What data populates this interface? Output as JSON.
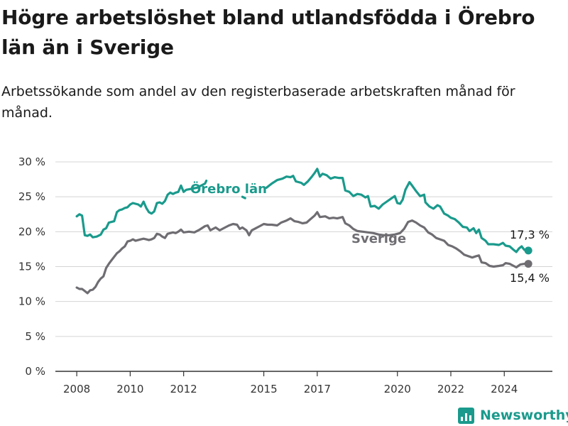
{
  "title": "Högre arbetslöshet bland utlandsfödda i Örebro län än i Sverige",
  "subtitle": "Arbetssökande som andel av den registerbaserade arbetskraften månad för månad.",
  "brand": {
    "name": "Newsworthy",
    "icon": "bar-chart-logo-icon"
  },
  "chart_data": {
    "type": "line",
    "xlim": [
      2007.2,
      2025.8
    ],
    "ylim": [
      0,
      30
    ],
    "grid": true,
    "x_ticks": [
      {
        "value": 2008,
        "label": "2008"
      },
      {
        "value": 2010,
        "label": "2010"
      },
      {
        "value": 2012,
        "label": "2012"
      },
      {
        "value": 2015,
        "label": "2015"
      },
      {
        "value": 2017,
        "label": "2017"
      },
      {
        "value": 2020,
        "label": "2020"
      },
      {
        "value": 2022,
        "label": "2022"
      },
      {
        "value": 2024,
        "label": "2024"
      }
    ],
    "y_ticks": [
      {
        "value": 0,
        "label": "0 %"
      },
      {
        "value": 5,
        "label": "5 %"
      },
      {
        "value": 10,
        "label": "10 %"
      },
      {
        "value": 15,
        "label": "15 %"
      },
      {
        "value": 20,
        "label": "20 %"
      },
      {
        "value": 25,
        "label": "25 %"
      },
      {
        "value": 30,
        "label": "30 %"
      }
    ],
    "series": [
      {
        "name": "Örebro län",
        "color": "#1a9a8c",
        "end_label": "17,3 %",
        "points": [
          [
            2008.0,
            22.2
          ],
          [
            2008.1,
            22.5
          ],
          [
            2008.2,
            22.3
          ],
          [
            2008.3,
            19.5
          ],
          [
            2008.4,
            19.4
          ],
          [
            2008.5,
            19.6
          ],
          [
            2008.6,
            19.2
          ],
          [
            2008.75,
            19.3
          ],
          [
            2008.9,
            19.6
          ],
          [
            2009.0,
            20.3
          ],
          [
            2009.1,
            20.5
          ],
          [
            2009.2,
            21.3
          ],
          [
            2009.3,
            21.4
          ],
          [
            2009.4,
            21.5
          ],
          [
            2009.5,
            22.8
          ],
          [
            2009.6,
            23.1
          ],
          [
            2009.7,
            23.2
          ],
          [
            2009.8,
            23.4
          ],
          [
            2009.9,
            23.5
          ],
          [
            2010.0,
            23.9
          ],
          [
            2010.1,
            24.1
          ],
          [
            2010.2,
            24.0
          ],
          [
            2010.3,
            23.9
          ],
          [
            2010.4,
            23.6
          ],
          [
            2010.5,
            24.3
          ],
          [
            2010.6,
            23.4
          ],
          [
            2010.7,
            22.8
          ],
          [
            2010.8,
            22.6
          ],
          [
            2010.9,
            22.9
          ],
          [
            2011.0,
            24.1
          ],
          [
            2011.1,
            24.2
          ],
          [
            2011.2,
            24.0
          ],
          [
            2011.3,
            24.4
          ],
          [
            2011.4,
            25.3
          ],
          [
            2011.5,
            25.6
          ],
          [
            2011.6,
            25.4
          ],
          [
            2011.7,
            25.6
          ],
          [
            2011.8,
            25.7
          ],
          [
            2011.9,
            26.6
          ],
          [
            2012.0,
            25.7
          ],
          [
            2012.1,
            26.0
          ],
          [
            2012.5,
            26.3
          ],
          [
            2012.8,
            26.9
          ],
          [
            2012.85,
            27.3
          ]
        ]
      },
      {
        "name": "",
        "color": "#1a9a8c",
        "points": [
          [
            2014.2,
            25.0
          ],
          [
            2014.3,
            24.8
          ]
        ]
      },
      {
        "name": "",
        "color": "#1a9a8c",
        "points": [
          [
            2015.1,
            26.3
          ],
          [
            2015.3,
            26.9
          ],
          [
            2015.5,
            27.4
          ],
          [
            2015.7,
            27.6
          ],
          [
            2015.85,
            27.9
          ],
          [
            2016.0,
            27.8
          ],
          [
            2016.1,
            28.0
          ],
          [
            2016.2,
            27.2
          ],
          [
            2016.4,
            27.0
          ],
          [
            2016.5,
            26.7
          ],
          [
            2016.65,
            27.2
          ],
          [
            2016.8,
            27.9
          ],
          [
            2016.9,
            28.4
          ],
          [
            2017.0,
            29.0
          ],
          [
            2017.1,
            27.9
          ],
          [
            2017.2,
            28.3
          ],
          [
            2017.35,
            28.1
          ],
          [
            2017.5,
            27.6
          ],
          [
            2017.65,
            27.8
          ],
          [
            2017.8,
            27.7
          ],
          [
            2017.95,
            27.7
          ],
          [
            2018.05,
            25.9
          ],
          [
            2018.2,
            25.7
          ],
          [
            2018.35,
            25.1
          ],
          [
            2018.5,
            25.4
          ],
          [
            2018.65,
            25.3
          ],
          [
            2018.8,
            24.9
          ],
          [
            2018.9,
            25.1
          ],
          [
            2019.0,
            23.6
          ],
          [
            2019.15,
            23.7
          ],
          [
            2019.3,
            23.3
          ],
          [
            2019.45,
            23.9
          ],
          [
            2019.6,
            24.3
          ],
          [
            2019.75,
            24.7
          ],
          [
            2019.9,
            25.1
          ],
          [
            2020.0,
            24.1
          ],
          [
            2020.1,
            24.0
          ],
          [
            2020.2,
            24.6
          ],
          [
            2020.3,
            26.0
          ],
          [
            2020.45,
            27.1
          ],
          [
            2020.55,
            26.6
          ],
          [
            2020.7,
            25.8
          ],
          [
            2020.85,
            25.1
          ],
          [
            2021.0,
            25.3
          ],
          [
            2021.05,
            24.2
          ],
          [
            2021.2,
            23.6
          ],
          [
            2021.35,
            23.3
          ],
          [
            2021.5,
            23.8
          ],
          [
            2021.6,
            23.6
          ],
          [
            2021.75,
            22.6
          ],
          [
            2021.9,
            22.3
          ],
          [
            2022.0,
            22.0
          ],
          [
            2022.15,
            21.8
          ],
          [
            2022.3,
            21.3
          ],
          [
            2022.45,
            20.7
          ],
          [
            2022.6,
            20.6
          ],
          [
            2022.7,
            20.1
          ],
          [
            2022.85,
            20.5
          ],
          [
            2022.95,
            19.8
          ],
          [
            2023.05,
            20.3
          ],
          [
            2023.15,
            19.1
          ],
          [
            2023.3,
            18.7
          ],
          [
            2023.4,
            18.2
          ],
          [
            2023.6,
            18.2
          ],
          [
            2023.8,
            18.1
          ],
          [
            2023.95,
            18.4
          ],
          [
            2024.05,
            18.0
          ],
          [
            2024.2,
            17.9
          ],
          [
            2024.35,
            17.4
          ],
          [
            2024.45,
            17.1
          ],
          [
            2024.55,
            17.6
          ],
          [
            2024.65,
            17.9
          ],
          [
            2024.75,
            17.4
          ],
          [
            2024.9,
            17.3
          ]
        ]
      },
      {
        "name": "Sverige",
        "color": "#6f6d72",
        "end_label": "15,4 %",
        "points": [
          [
            2008.0,
            12.0
          ],
          [
            2008.1,
            11.8
          ],
          [
            2008.2,
            11.8
          ],
          [
            2008.3,
            11.5
          ],
          [
            2008.4,
            11.2
          ],
          [
            2008.5,
            11.6
          ],
          [
            2008.6,
            11.7
          ],
          [
            2008.7,
            12.1
          ],
          [
            2008.8,
            12.8
          ],
          [
            2008.9,
            13.3
          ],
          [
            2009.0,
            13.6
          ],
          [
            2009.1,
            14.8
          ],
          [
            2009.2,
            15.4
          ],
          [
            2009.3,
            15.9
          ],
          [
            2009.4,
            16.4
          ],
          [
            2009.5,
            16.9
          ],
          [
            2009.6,
            17.2
          ],
          [
            2009.7,
            17.6
          ],
          [
            2009.8,
            17.9
          ],
          [
            2009.9,
            18.6
          ],
          [
            2010.0,
            18.7
          ],
          [
            2010.1,
            18.9
          ],
          [
            2010.2,
            18.7
          ],
          [
            2010.3,
            18.8
          ],
          [
            2010.4,
            18.9
          ],
          [
            2010.5,
            19.0
          ],
          [
            2010.6,
            18.9
          ],
          [
            2010.7,
            18.8
          ],
          [
            2010.8,
            18.9
          ],
          [
            2010.9,
            19.1
          ],
          [
            2011.0,
            19.7
          ],
          [
            2011.1,
            19.6
          ],
          [
            2011.2,
            19.3
          ],
          [
            2011.3,
            19.1
          ],
          [
            2011.4,
            19.7
          ],
          [
            2011.5,
            19.8
          ],
          [
            2011.6,
            19.9
          ],
          [
            2011.7,
            19.8
          ],
          [
            2011.8,
            20.0
          ],
          [
            2011.9,
            20.3
          ],
          [
            2012.0,
            19.9
          ],
          [
            2012.2,
            20.0
          ],
          [
            2012.4,
            19.9
          ],
          [
            2012.6,
            20.3
          ],
          [
            2012.8,
            20.8
          ],
          [
            2012.9,
            20.9
          ],
          [
            2013.0,
            20.2
          ],
          [
            2013.2,
            20.6
          ],
          [
            2013.35,
            20.2
          ],
          [
            2013.5,
            20.5
          ],
          [
            2013.7,
            20.9
          ],
          [
            2013.85,
            21.1
          ],
          [
            2014.0,
            21.0
          ],
          [
            2014.1,
            20.4
          ],
          [
            2014.2,
            20.6
          ],
          [
            2014.35,
            20.2
          ],
          [
            2014.45,
            19.5
          ],
          [
            2014.55,
            20.2
          ],
          [
            2014.7,
            20.5
          ],
          [
            2014.85,
            20.8
          ],
          [
            2015.0,
            21.1
          ],
          [
            2015.15,
            21.0
          ],
          [
            2015.3,
            21.0
          ],
          [
            2015.5,
            20.9
          ],
          [
            2015.65,
            21.3
          ],
          [
            2015.85,
            21.6
          ],
          [
            2016.0,
            21.9
          ],
          [
            2016.15,
            21.5
          ],
          [
            2016.3,
            21.4
          ],
          [
            2016.45,
            21.2
          ],
          [
            2016.6,
            21.3
          ],
          [
            2016.75,
            21.8
          ],
          [
            2016.9,
            22.3
          ],
          [
            2017.0,
            22.8
          ],
          [
            2017.1,
            22.1
          ],
          [
            2017.3,
            22.2
          ],
          [
            2017.45,
            21.9
          ],
          [
            2017.6,
            22.0
          ],
          [
            2017.75,
            21.9
          ],
          [
            2017.95,
            22.1
          ],
          [
            2018.05,
            21.2
          ],
          [
            2018.2,
            20.9
          ],
          [
            2018.35,
            20.4
          ],
          [
            2018.5,
            20.1
          ],
          [
            2018.7,
            20.0
          ],
          [
            2018.9,
            19.9
          ],
          [
            2019.1,
            19.8
          ],
          [
            2019.3,
            19.6
          ],
          [
            2019.5,
            19.5
          ],
          [
            2019.7,
            19.5
          ],
          [
            2019.9,
            19.6
          ],
          [
            2020.1,
            19.8
          ],
          [
            2020.25,
            20.4
          ],
          [
            2020.4,
            21.4
          ],
          [
            2020.55,
            21.6
          ],
          [
            2020.7,
            21.3
          ],
          [
            2020.85,
            20.9
          ],
          [
            2021.0,
            20.6
          ],
          [
            2021.15,
            19.9
          ],
          [
            2021.3,
            19.6
          ],
          [
            2021.45,
            19.1
          ],
          [
            2021.6,
            18.9
          ],
          [
            2021.75,
            18.7
          ],
          [
            2021.9,
            18.1
          ],
          [
            2022.05,
            17.9
          ],
          [
            2022.2,
            17.6
          ],
          [
            2022.35,
            17.2
          ],
          [
            2022.5,
            16.7
          ],
          [
            2022.65,
            16.5
          ],
          [
            2022.8,
            16.3
          ],
          [
            2022.95,
            16.5
          ],
          [
            2023.05,
            16.6
          ],
          [
            2023.15,
            15.6
          ],
          [
            2023.3,
            15.5
          ],
          [
            2023.45,
            15.1
          ],
          [
            2023.6,
            15.0
          ],
          [
            2023.8,
            15.1
          ],
          [
            2023.95,
            15.2
          ],
          [
            2024.05,
            15.5
          ],
          [
            2024.2,
            15.4
          ],
          [
            2024.35,
            15.1
          ],
          [
            2024.45,
            14.9
          ],
          [
            2024.6,
            15.3
          ],
          [
            2024.75,
            15.4
          ],
          [
            2024.9,
            15.4
          ]
        ]
      }
    ]
  }
}
